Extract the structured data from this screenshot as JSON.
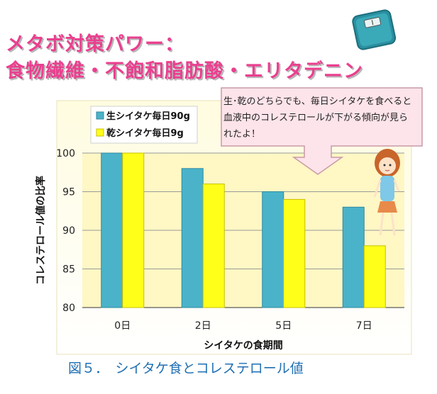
{
  "title_lines": [
    "メタボ対策パワー：",
    "食物繊維・不飽和脂肪酸・エリタデニン"
  ],
  "callout": "生･乾のどちらでも、毎日シイタケを食べると血液中のコレステロールが下がる傾向が見られたよ！",
  "caption": "図５．　シイタケ食とコレステロール値",
  "colors": {
    "raw": "#4ab3c9",
    "dried": "#ffff1a",
    "title": "#ea3f8f",
    "caption": "#1f6fb3"
  },
  "chart_data": {
    "type": "bar",
    "categories": [
      "0日",
      "2日",
      "5日",
      "7日"
    ],
    "series": [
      {
        "name": "生シイタケ毎日90g",
        "values": [
          100,
          98,
          95,
          93
        ]
      },
      {
        "name": "乾シイタケ毎日9g",
        "values": [
          100,
          96,
          94,
          88
        ]
      }
    ],
    "xlabel": "シイタケの食期間",
    "ylabel": "コレステロール値の比率",
    "ylim": [
      80,
      100
    ],
    "yticks": [
      80,
      85,
      90,
      95,
      100
    ],
    "legend": "top-left",
    "grid": true
  }
}
